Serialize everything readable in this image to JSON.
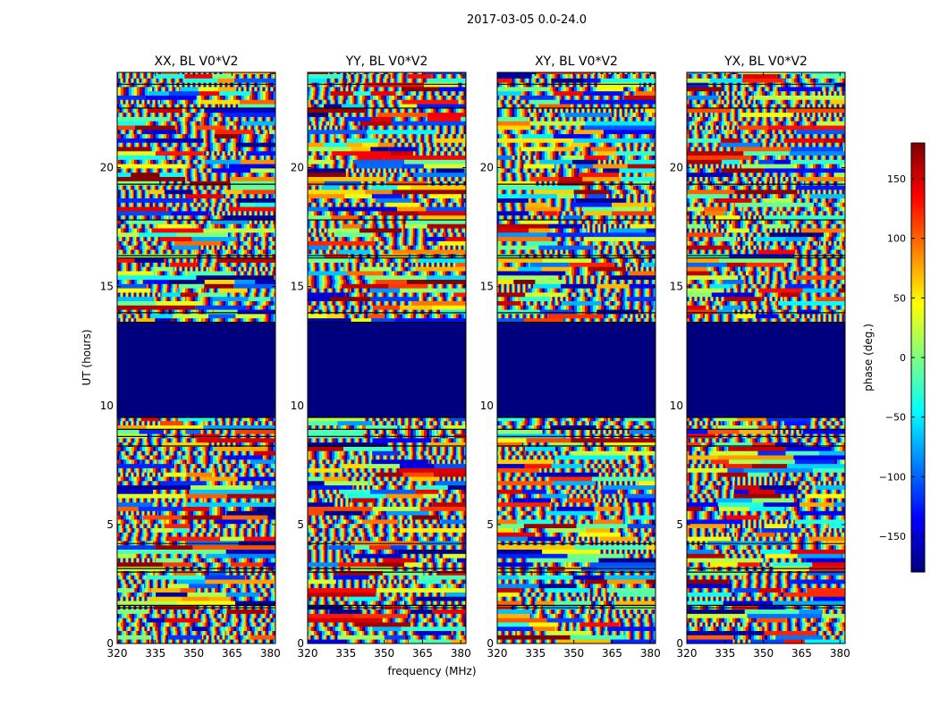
{
  "figure_title": "2017-03-05 0.0-24.0",
  "chart_data": {
    "type": "heatmap",
    "suptitle": "2017-03-05 0.0-24.0",
    "xlabel": "frequency (MHz)",
    "ylabel": "UT (hours)",
    "xlim": [
      320,
      382
    ],
    "ylim": [
      0,
      24
    ],
    "x_ticks": [
      320,
      335,
      350,
      365,
      380
    ],
    "y_ticks": [
      0,
      5,
      10,
      15,
      20
    ],
    "panels": [
      {
        "title": "XX, BL V0*V2",
        "polarization": "XX"
      },
      {
        "title": "YY, BL V0*V2",
        "polarization": "YY"
      },
      {
        "title": "XY, BL V0*V2",
        "polarization": "XY"
      },
      {
        "title": "YX, BL V0*V2",
        "polarization": "YX"
      }
    ],
    "flagged_range_hours": [
      9.5,
      13.5
    ],
    "colorbar": {
      "label": "phase (deg.)",
      "range": [
        -180,
        180
      ],
      "ticks": [
        -150,
        -100,
        -50,
        0,
        50,
        100,
        150
      ],
      "tick_labels": [
        "−150",
        "−100",
        "−50",
        "0",
        "50",
        "100",
        "150"
      ],
      "colormap": "jet"
    },
    "colors": {
      "flagged": "#00007f",
      "jet_stops": [
        "#00007f",
        "#0000ff",
        "#007fff",
        "#00ffff",
        "#7fff7f",
        "#ffff00",
        "#ff7f00",
        "#ff0000",
        "#7f0000"
      ]
    }
  }
}
